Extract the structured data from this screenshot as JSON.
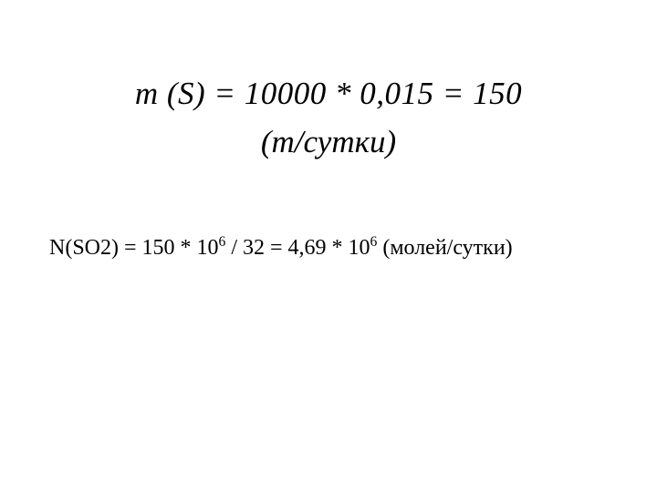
{
  "colors": {
    "background": "#ffffff",
    "text": "#000000"
  },
  "typography": {
    "family": "Times New Roman",
    "eq1_fontsize_pt": 26,
    "eq1_style": "italic",
    "eq2_fontsize_pt": 18,
    "eq2_style": "normal"
  },
  "equation1": {
    "line1": "m (S) = 10000 * 0,015 = 150",
    "line2": "(т/сутки)"
  },
  "equation2": {
    "parts": {
      "p1": "N(SO2) = 150 * 10",
      "sup1": "6",
      "p2": " / 32 = 4,69 * 10",
      "sup2": "6",
      "p3": " (молей/сутки)"
    }
  }
}
